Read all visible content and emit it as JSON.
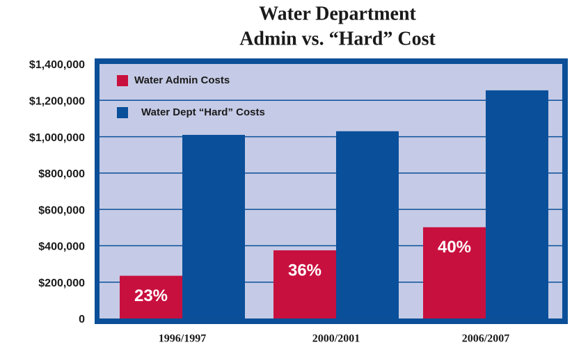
{
  "chart_data": {
    "type": "bar",
    "title": [
      "Water Department",
      "Admin vs. “Hard” Cost"
    ],
    "categories": [
      "1996/1997",
      "2000/2001",
      "2006/2007"
    ],
    "series": [
      {
        "name": "Water Admin Costs",
        "color": "#c8103e",
        "values": [
          235000,
          375000,
          502000
        ]
      },
      {
        "name": "Water Dept “Hard” Costs",
        "color": "#0a4f9a",
        "values": [
          1010000,
          1030000,
          1255000
        ]
      }
    ],
    "share_labels": [
      "23%",
      "36%",
      "40%"
    ],
    "ylim": [
      0,
      1400000
    ],
    "yticks": [
      0,
      {
        "value": 200000,
        "label": "$200,000"
      },
      {
        "value": 400000,
        "label": "$400,000"
      },
      {
        "value": 600000,
        "label": "$600,000"
      },
      {
        "value": 800000,
        "label": "$800,000"
      },
      {
        "value": 1000000,
        "label": "$1,000,000"
      },
      {
        "value": 1200000,
        "label": "$1,200,000"
      },
      {
        "value": 1400000,
        "label": "$1,400,000"
      }
    ],
    "grid": true
  }
}
